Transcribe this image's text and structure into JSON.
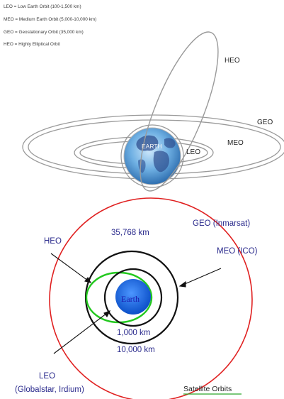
{
  "legend": [
    "LEO = Low Earth Orbit (100-1,500 km)",
    "MEO = Medium Earth Orbit (5,000-10,000 km)",
    "GEO = Geostationary Orbit (35,000 km)",
    "HEO = Highly Elliptical Orbit"
  ],
  "top_diagram": {
    "earth_label": "EARTH",
    "heo": "HEO",
    "geo": "GEO",
    "meo": "MEO",
    "leo": "LEO"
  },
  "bottom_diagram": {
    "geo_label": "GEO (Inmarsat)",
    "geo_distance": "35,768 km",
    "meo_label": "MEO (ICO)",
    "heo_label": "HEO",
    "earth_label": "Earth",
    "leo_distance": "1,000 km",
    "meo_distance": "10,000 km",
    "leo_label_line1": "LEO",
    "leo_label_line2": "(Globalstar, Irdium)",
    "title": "Satellite Orbits"
  },
  "colors": {
    "orbit_grey": "#9a9a9a",
    "geo_red": "#e02020",
    "heo_green": "#22c81e",
    "earth_blue": "#1766e0",
    "label_blue": "#2a2a8c",
    "underline_green": "#2aa82a"
  }
}
